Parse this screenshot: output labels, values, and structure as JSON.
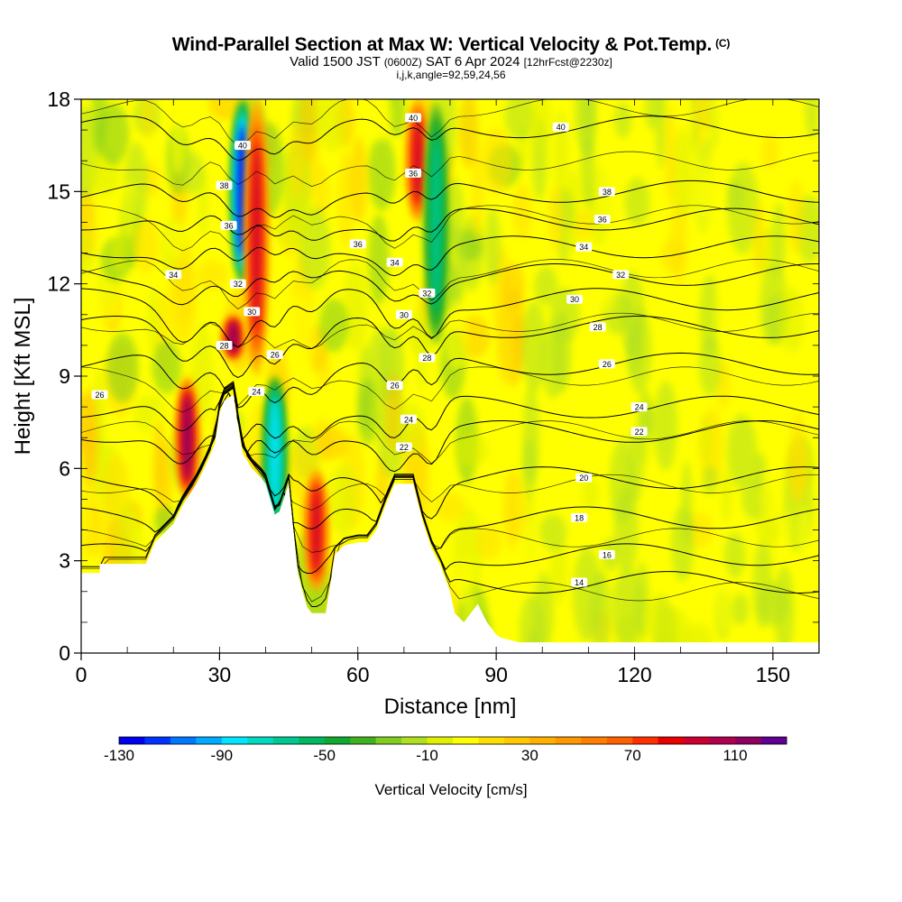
{
  "title": "Wind-Parallel Section at Max W: Vertical Velocity & Pot.Temp.",
  "title_mark": "(C)",
  "subtitle_pre": "Valid 1500 JST",
  "subtitle_utc": "(0600Z)",
  "subtitle_date": "SAT 6 Apr 2024",
  "subtitle_fcst": "[12hrFcst@2230z]",
  "subtitle2": "i,j,k,angle=92,59,24,56",
  "chart_data": {
    "type": "heatmap",
    "xlabel": "Distance [nm]",
    "ylabel": "Height [Kft MSL]",
    "xlim": [
      0,
      160
    ],
    "ylim": [
      0,
      18
    ],
    "x_ticks": [
      "0",
      "30",
      "60",
      "90",
      "120",
      "150"
    ],
    "y_ticks": [
      "0",
      "3",
      "6",
      "9",
      "12",
      "15",
      "18"
    ],
    "colorbar": {
      "title": "Vertical Velocity [cm/s]",
      "range": [
        -130,
        130
      ],
      "step": 10,
      "tick_labels": [
        "-130",
        "-90",
        "-50",
        "-10",
        "30",
        "70",
        "110"
      ],
      "colors": [
        "#0000ee",
        "#0033ff",
        "#0077ff",
        "#00aaff",
        "#00e5ff",
        "#00d8c0",
        "#00c890",
        "#00b860",
        "#10a830",
        "#40b020",
        "#80cc20",
        "#b0e020",
        "#e0f000",
        "#ffff00",
        "#ffe000",
        "#ffc800",
        "#ffb000",
        "#ff9800",
        "#ff7e00",
        "#ff6000",
        "#ff3000",
        "#e80000",
        "#cc0030",
        "#b00050",
        "#900060",
        "#600090"
      ]
    },
    "terrain": [
      [
        0,
        2.6
      ],
      [
        4,
        2.6
      ],
      [
        4,
        2.9
      ],
      [
        14,
        2.9
      ],
      [
        16,
        3.6
      ],
      [
        20,
        4.2
      ],
      [
        22,
        4.8
      ],
      [
        25,
        5.5
      ],
      [
        27,
        6.1
      ],
      [
        29,
        6.8
      ],
      [
        30,
        7.8
      ],
      [
        31,
        8.2
      ],
      [
        33,
        8.4
      ],
      [
        34,
        7.4
      ],
      [
        35,
        6.5
      ],
      [
        37,
        6.0
      ],
      [
        39,
        5.7
      ],
      [
        40,
        5.5
      ],
      [
        41,
        5.0
      ],
      [
        42,
        4.5
      ],
      [
        43,
        4.6
      ],
      [
        45,
        5.5
      ],
      [
        46,
        4.0
      ],
      [
        47,
        2.6
      ],
      [
        48,
        2.0
      ],
      [
        49,
        1.5
      ],
      [
        50,
        1.3
      ],
      [
        53,
        1.3
      ],
      [
        54,
        2.2
      ],
      [
        55,
        3.2
      ],
      [
        57,
        3.5
      ],
      [
        60,
        3.6
      ],
      [
        62,
        3.6
      ],
      [
        64,
        4.0
      ],
      [
        66,
        4.8
      ],
      [
        68,
        5.5
      ],
      [
        72,
        5.5
      ],
      [
        74,
        4.3
      ],
      [
        76,
        3.4
      ],
      [
        78,
        2.8
      ],
      [
        80,
        2.0
      ],
      [
        81,
        1.3
      ],
      [
        83,
        1.0
      ],
      [
        84,
        1.2
      ],
      [
        85,
        1.4
      ],
      [
        86,
        1.6
      ],
      [
        87,
        1.3
      ],
      [
        88,
        1.0
      ],
      [
        90,
        0.6
      ],
      [
        91,
        0.5
      ],
      [
        95,
        0.35
      ],
      [
        160,
        0.35
      ]
    ],
    "vertical_velocity_features": [
      {
        "x": 23,
        "z": [
          5,
          9
        ],
        "w": 110
      },
      {
        "x": 33,
        "z": [
          9.5,
          11
        ],
        "w": 110
      },
      {
        "x": 35,
        "z": [
          12,
          18
        ],
        "w": -130
      },
      {
        "x": 38,
        "z": [
          9,
          18
        ],
        "w": 90
      },
      {
        "x": 42,
        "z": [
          4,
          9
        ],
        "w": -90
      },
      {
        "x": 51,
        "z": [
          2,
          6
        ],
        "w": 90
      },
      {
        "x": 73,
        "z": [
          14,
          18
        ],
        "w": 90
      },
      {
        "x": 77,
        "z": [
          10,
          18
        ],
        "w": -70
      }
    ],
    "potential_temperature_contours": [
      {
        "label": "14",
        "x": 108,
        "z": 2.3
      },
      {
        "label": "16",
        "x": 114,
        "z": 3.2
      },
      {
        "label": "18",
        "x": 108,
        "z": 4.4
      },
      {
        "label": "20",
        "x": 109,
        "z": 5.7
      },
      {
        "label": "22",
        "x": 121,
        "z": 7.2
      },
      {
        "label": "24",
        "x": 121,
        "z": 8.0
      },
      {
        "label": "26",
        "x": 114,
        "z": 9.4
      },
      {
        "label": "28",
        "x": 112,
        "z": 10.6
      },
      {
        "label": "30",
        "x": 107,
        "z": 11.5
      },
      {
        "label": "32",
        "x": 117,
        "z": 12.3
      },
      {
        "label": "34",
        "x": 109,
        "z": 13.2
      },
      {
        "label": "36",
        "x": 113,
        "z": 14.1
      },
      {
        "label": "38",
        "x": 114,
        "z": 15.0
      },
      {
        "label": "40",
        "x": 104,
        "z": 17.1
      }
    ],
    "inline_contour_labels": [
      {
        "label": "26",
        "x": 4,
        "z": 8.4
      },
      {
        "label": "34",
        "x": 20,
        "z": 12.3
      },
      {
        "label": "36",
        "x": 32,
        "z": 13.9
      },
      {
        "label": "38",
        "x": 31,
        "z": 15.2
      },
      {
        "label": "40",
        "x": 35,
        "z": 16.5
      },
      {
        "label": "32",
        "x": 34,
        "z": 12
      },
      {
        "label": "30",
        "x": 37,
        "z": 11.1
      },
      {
        "label": "28",
        "x": 31,
        "z": 10.0
      },
      {
        "label": "26",
        "x": 42,
        "z": 9.7
      },
      {
        "label": "24",
        "x": 38,
        "z": 8.5
      },
      {
        "label": "36",
        "x": 60,
        "z": 13.3
      },
      {
        "label": "34",
        "x": 68,
        "z": 12.7
      },
      {
        "label": "32",
        "x": 75,
        "z": 11.7
      },
      {
        "label": "30",
        "x": 70,
        "z": 11.0
      },
      {
        "label": "28",
        "x": 75,
        "z": 9.6
      },
      {
        "label": "26",
        "x": 68,
        "z": 8.7
      },
      {
        "label": "24",
        "x": 71,
        "z": 7.6
      },
      {
        "label": "22",
        "x": 70,
        "z": 6.7
      },
      {
        "label": "40",
        "x": 72,
        "z": 17.4
      },
      {
        "label": "36",
        "x": 72,
        "z": 15.6
      }
    ]
  }
}
